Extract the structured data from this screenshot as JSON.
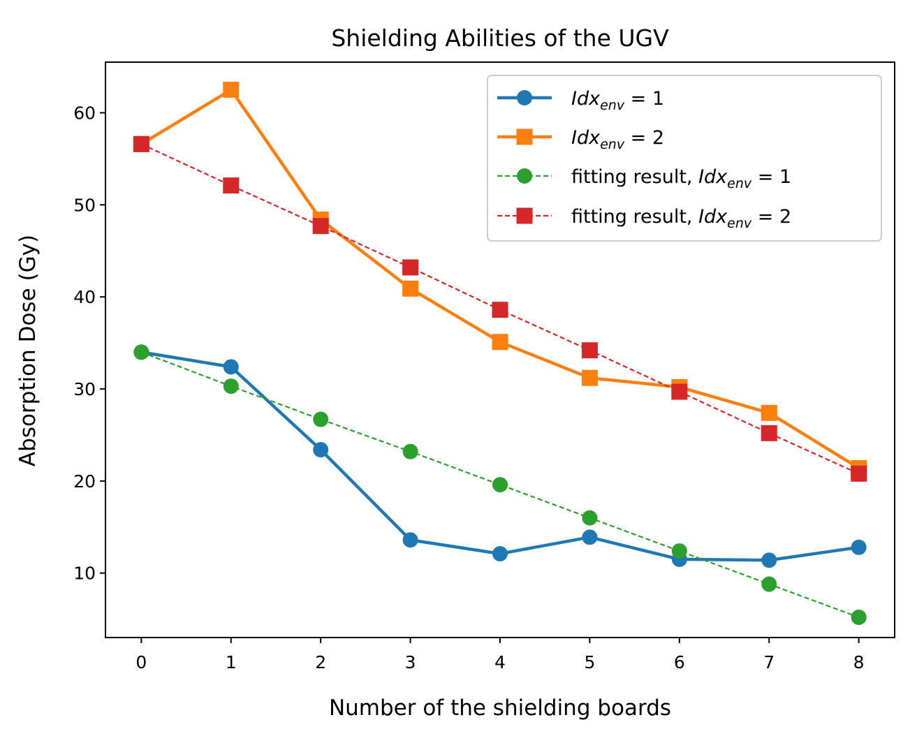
{
  "chart_data": {
    "type": "line",
    "title": "Shielding Abilities of the UGV",
    "xlabel": "Number of the shielding boards",
    "ylabel": "Absorption Dose (Gy)",
    "xlim": [
      -0.4,
      8.4
    ],
    "ylim": [
      3.0,
      65.5
    ],
    "xticks": [
      0,
      1,
      2,
      3,
      4,
      5,
      6,
      7,
      8
    ],
    "yticks": [
      10,
      20,
      30,
      40,
      50,
      60
    ],
    "x": [
      0,
      1,
      2,
      3,
      4,
      5,
      6,
      7,
      8
    ],
    "legend_position": "top-right",
    "series": [
      {
        "name": "Idx_env = 1",
        "legend_prefix": "",
        "legend_var": "Idx",
        "legend_sub": "env",
        "legend_eq": " = 1",
        "color": "#1f77b4",
        "style": "solid",
        "marker": "circle",
        "values": [
          34.0,
          32.4,
          23.4,
          13.6,
          12.1,
          13.9,
          11.5,
          11.4,
          12.8
        ]
      },
      {
        "name": "Idx_env = 2",
        "legend_prefix": "",
        "legend_var": "Idx",
        "legend_sub": "env",
        "legend_eq": " = 2",
        "color": "#ff7f0e",
        "style": "solid",
        "marker": "square",
        "values": [
          56.6,
          62.5,
          48.4,
          40.9,
          35.1,
          31.2,
          30.2,
          27.4,
          21.4
        ]
      },
      {
        "name": "fitting result, Idx_env = 1",
        "legend_prefix": "fitting result, ",
        "legend_var": "Idx",
        "legend_sub": "env",
        "legend_eq": " = 1",
        "color": "#2ca02c",
        "style": "dashed",
        "marker": "circle",
        "values": [
          34.0,
          30.3,
          26.7,
          23.2,
          19.6,
          16.0,
          12.4,
          8.8,
          5.2
        ]
      },
      {
        "name": "fitting result, Idx_env = 2",
        "legend_prefix": "fitting result, ",
        "legend_var": "Idx",
        "legend_sub": "env",
        "legend_eq": " = 2",
        "color": "#d62728",
        "style": "dashed",
        "marker": "square",
        "values": [
          56.6,
          52.1,
          47.7,
          43.2,
          38.6,
          34.2,
          29.7,
          25.2,
          20.8
        ]
      }
    ]
  }
}
